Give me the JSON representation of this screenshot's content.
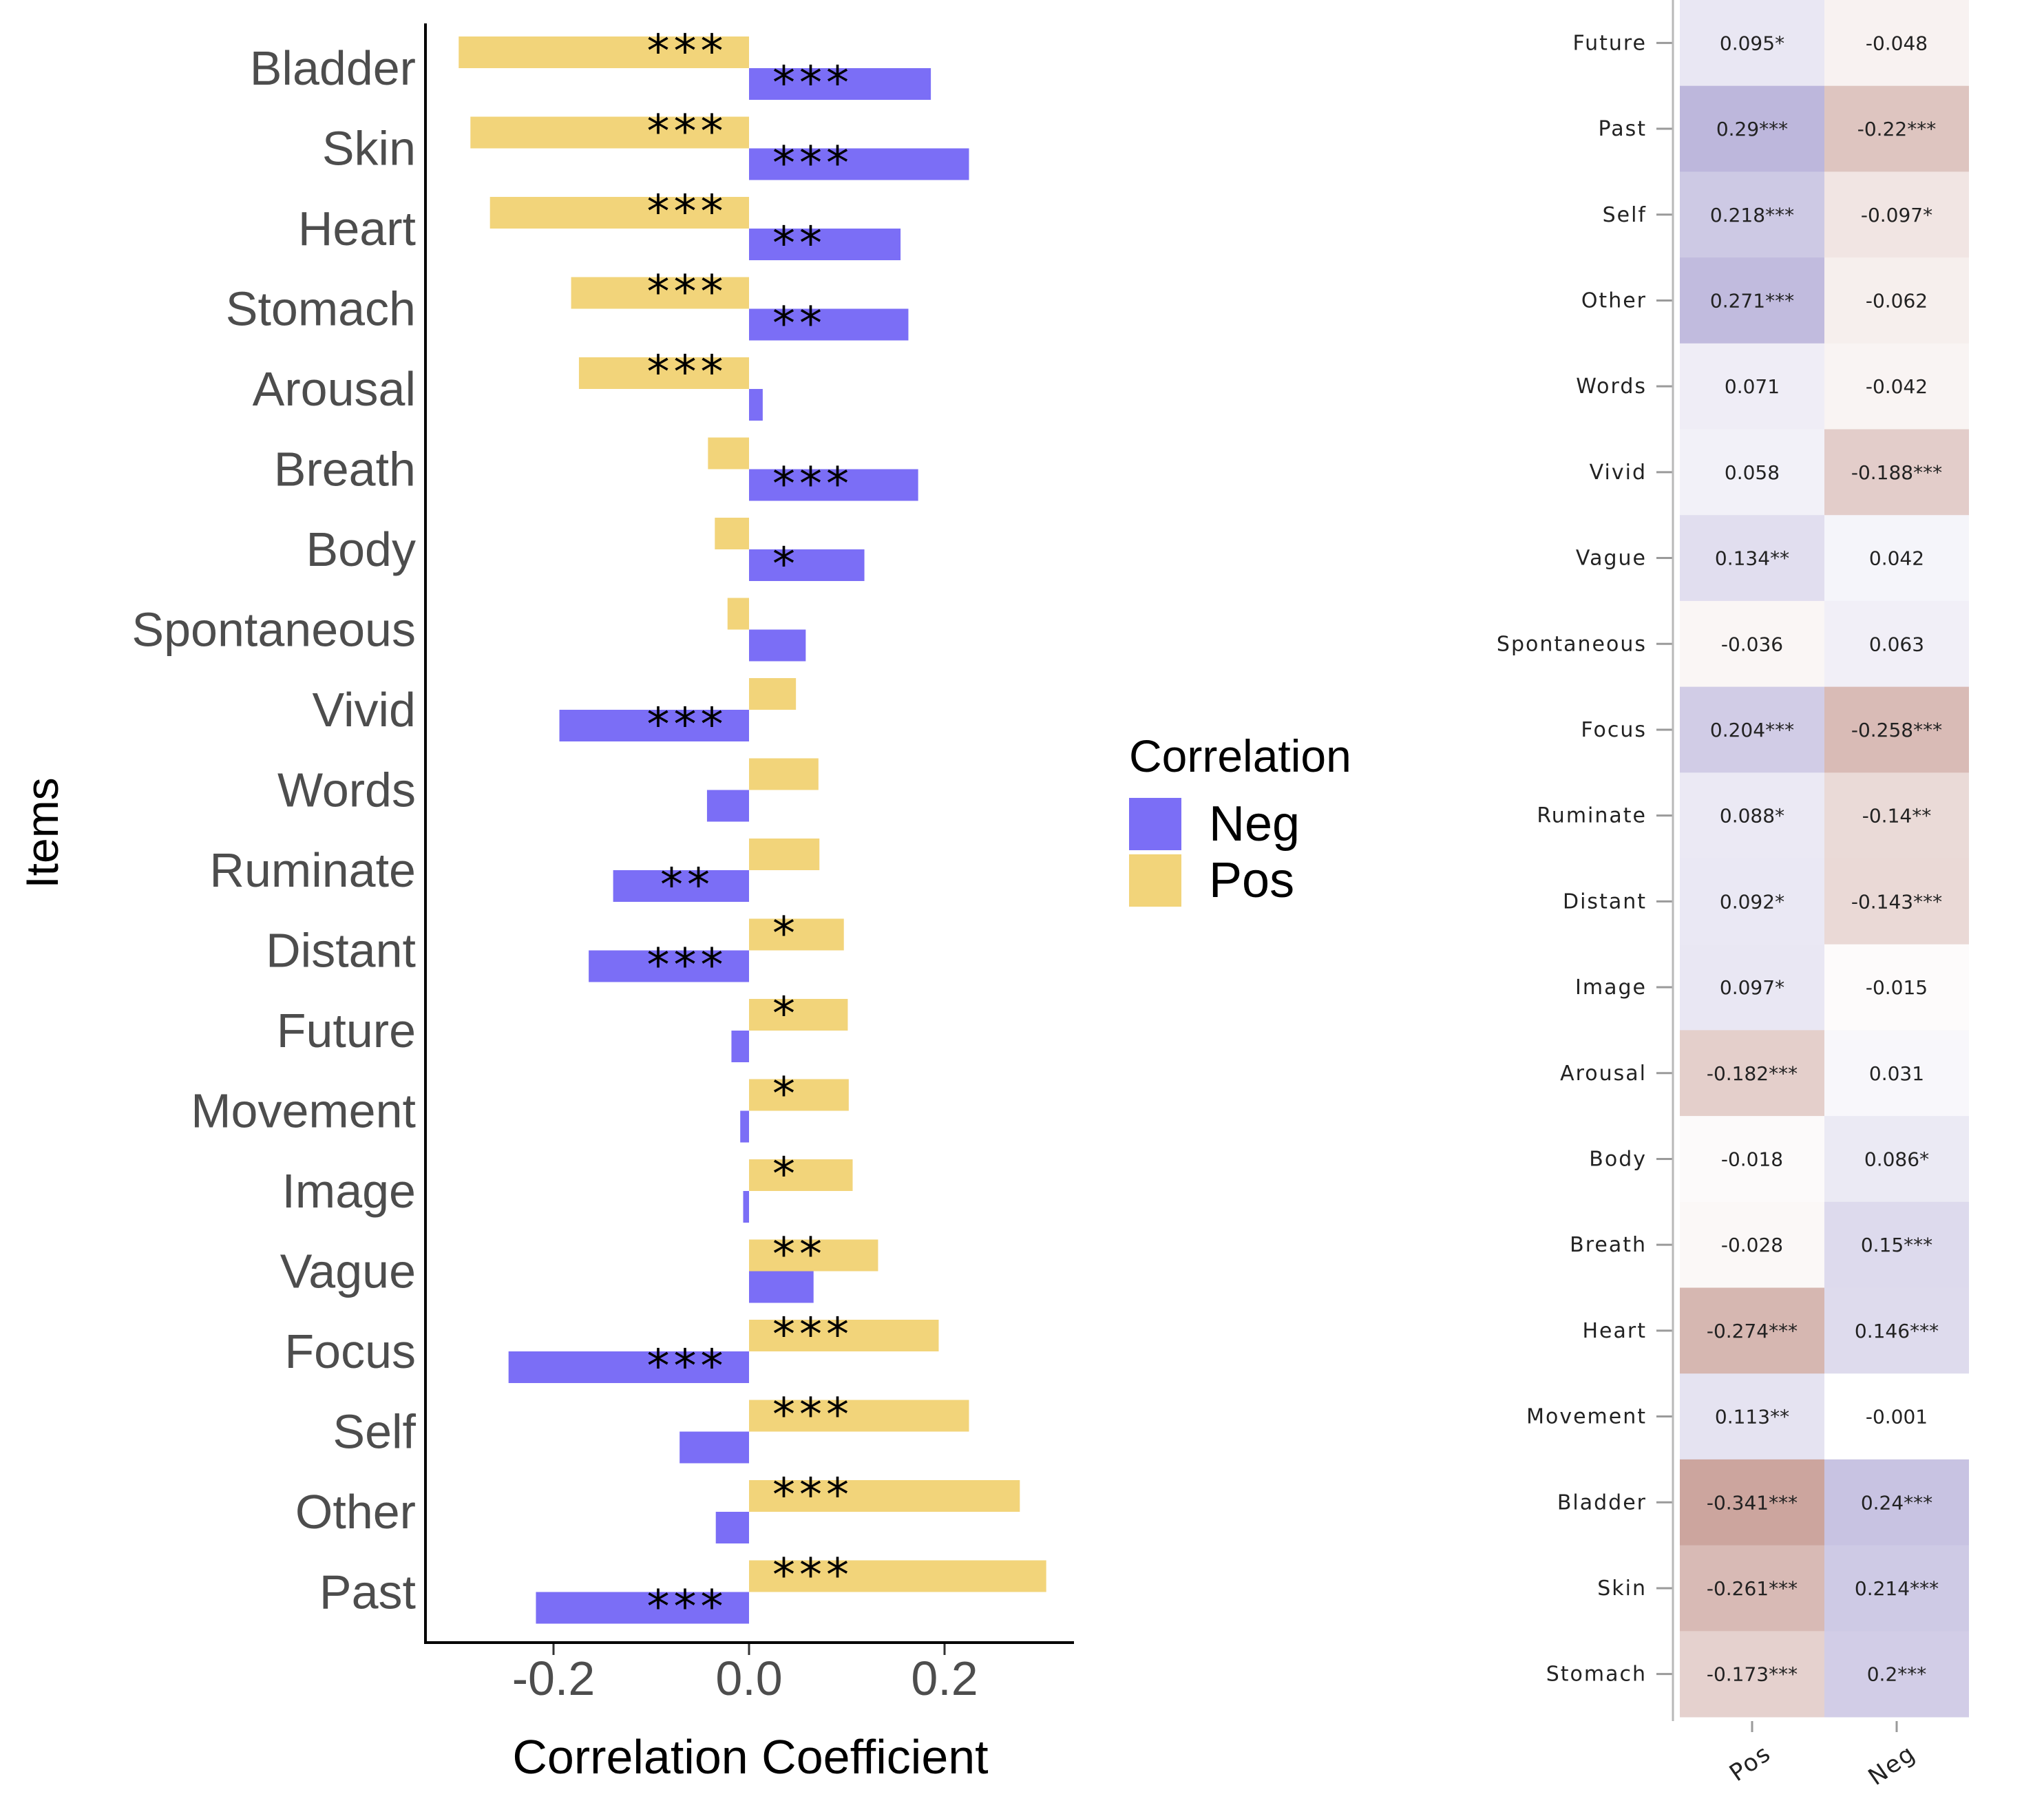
{
  "legend": {
    "title": "Correlation",
    "items": [
      {
        "label": "Neg",
        "color": "#7B6EF6"
      },
      {
        "label": "Pos",
        "color": "#F2D47A"
      }
    ]
  },
  "chart_data": [
    {
      "type": "bar",
      "orientation": "horizontal",
      "xlabel": "Correlation Coefficient",
      "ylabel": "Items",
      "xlim": [
        -0.33,
        0.33
      ],
      "xticks": [
        -0.2,
        0.0,
        0.2
      ],
      "xtick_labels": [
        "-0.2",
        "0.0",
        "0.2"
      ],
      "categories": [
        "Bladder",
        "Skin",
        "Heart",
        "Stomach",
        "Arousal",
        "Breath",
        "Body",
        "Spontaneous",
        "Vivid",
        "Words",
        "Ruminate",
        "Distant",
        "Future",
        "Movement",
        "Image",
        "Vague",
        "Focus",
        "Self",
        "Other",
        "Past"
      ],
      "series": [
        {
          "name": "Pos",
          "color": "#F2D47A",
          "values": [
            -0.297,
            -0.285,
            -0.265,
            -0.182,
            -0.174,
            -0.042,
            -0.035,
            -0.022,
            0.048,
            0.071,
            0.072,
            0.097,
            0.101,
            0.102,
            0.106,
            0.132,
            0.194,
            0.225,
            0.277,
            0.304
          ],
          "significance": [
            "***",
            "***",
            "***",
            "***",
            "***",
            "",
            "",
            "",
            "",
            "",
            "",
            "*",
            "*",
            "*",
            "*",
            "**",
            "***",
            "***",
            "***",
            "***"
          ]
        },
        {
          "name": "Neg",
          "color": "#7B6EF6",
          "values": [
            0.186,
            0.225,
            0.155,
            0.163,
            0.014,
            0.173,
            0.118,
            0.058,
            -0.194,
            -0.043,
            -0.139,
            -0.164,
            -0.018,
            -0.009,
            -0.006,
            0.066,
            -0.246,
            -0.071,
            -0.034,
            -0.218
          ],
          "significance": [
            "***",
            "***",
            "**",
            "**",
            "",
            "***",
            "*",
            "",
            "***",
            "",
            "**",
            "***",
            "",
            "",
            "",
            "",
            "***",
            "",
            "",
            "***"
          ]
        }
      ],
      "grid": false
    },
    {
      "type": "heatmap",
      "columns": [
        "Pos",
        "Neg"
      ],
      "rows": [
        "Future",
        "Past",
        "Self",
        "Other",
        "Words",
        "Vivid",
        "Vague",
        "Spontaneous",
        "Focus",
        "Ruminate",
        "Distant",
        "Image",
        "Arousal",
        "Body",
        "Breath",
        "Heart",
        "Movement",
        "Bladder",
        "Skin",
        "Stomach"
      ],
      "values": [
        [
          0.095,
          -0.048
        ],
        [
          0.29,
          -0.22
        ],
        [
          0.218,
          -0.097
        ],
        [
          0.271,
          -0.062
        ],
        [
          0.071,
          -0.042
        ],
        [
          0.058,
          -0.188
        ],
        [
          0.134,
          0.042
        ],
        [
          -0.036,
          0.063
        ],
        [
          0.204,
          -0.258
        ],
        [
          0.088,
          -0.14
        ],
        [
          0.092,
          -0.143
        ],
        [
          0.097,
          -0.015
        ],
        [
          -0.182,
          0.031
        ],
        [
          -0.018,
          0.086
        ],
        [
          -0.028,
          0.15
        ],
        [
          -0.274,
          0.146
        ],
        [
          0.113,
          -0.001
        ],
        [
          -0.341,
          0.24
        ],
        [
          -0.261,
          0.214
        ],
        [
          -0.173,
          0.2
        ]
      ],
      "labels": [
        [
          "0.095*",
          "-0.048"
        ],
        [
          "0.29***",
          "-0.22***"
        ],
        [
          "0.218***",
          "-0.097*"
        ],
        [
          "0.271***",
          "-0.062"
        ],
        [
          "0.071",
          "-0.042"
        ],
        [
          "0.058",
          "-0.188***"
        ],
        [
          "0.134**",
          "0.042"
        ],
        [
          "-0.036",
          "0.063"
        ],
        [
          "0.204***",
          "-0.258***"
        ],
        [
          "0.088*",
          "-0.14**"
        ],
        [
          "0.092*",
          "-0.143***"
        ],
        [
          "0.097*",
          "-0.015"
        ],
        [
          "-0.182***",
          "0.031"
        ],
        [
          "-0.018",
          "0.086*"
        ],
        [
          "-0.028",
          "0.15***"
        ],
        [
          "-0.274***",
          "0.146***"
        ],
        [
          "0.113**",
          "-0.001"
        ],
        [
          "-0.341***",
          "0.24***"
        ],
        [
          "-0.261***",
          "0.214***"
        ],
        [
          "-0.173***",
          "0.2***"
        ]
      ],
      "colors": {
        "positive": "#7B6EB8",
        "negative": "#A9665A",
        "zero": "#FFFFFF"
      }
    }
  ]
}
